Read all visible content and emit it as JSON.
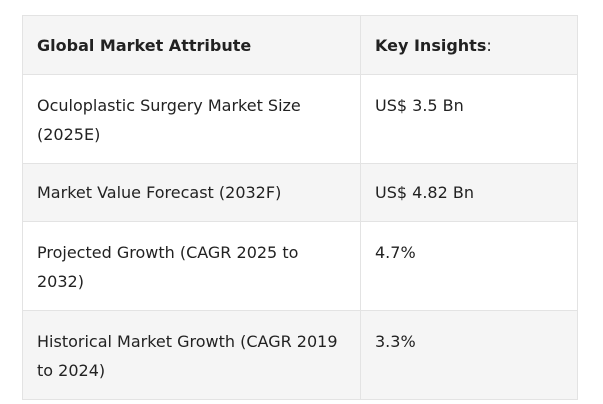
{
  "table": {
    "header": {
      "col1": "Global Market Attribute",
      "col2": "Key Insights",
      "col2_suffix": ":"
    },
    "rows": [
      {
        "attribute": "Oculoplastic Surgery Market Size (2025E)",
        "insight": "US$ 3.5 Bn"
      },
      {
        "attribute": "Market Value Forecast (2032F)",
        "insight": "US$ 4.82 Bn"
      },
      {
        "attribute": "Projected Growth (CAGR 2025 to 2032)",
        "insight": "4.7%"
      },
      {
        "attribute": "Historical Market Growth (CAGR 2019 to 2024)",
        "insight": "3.3%"
      }
    ]
  }
}
